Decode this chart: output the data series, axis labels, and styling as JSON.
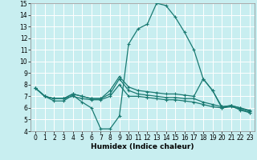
{
  "xlabel": "Humidex (Indice chaleur)",
  "bg_color": "#c8eef0",
  "grid_color": "#ffffff",
  "line_color": "#1a7a72",
  "xlim": [
    -0.5,
    23.5
  ],
  "ylim": [
    4,
    15
  ],
  "xticks": [
    0,
    1,
    2,
    3,
    4,
    5,
    6,
    7,
    8,
    9,
    10,
    11,
    12,
    13,
    14,
    15,
    16,
    17,
    18,
    19,
    20,
    21,
    22,
    23
  ],
  "yticks": [
    4,
    5,
    6,
    7,
    8,
    9,
    10,
    11,
    12,
    13,
    14,
    15
  ],
  "line1_x": [
    0,
    1,
    2,
    3,
    4,
    5,
    6,
    7,
    8,
    9,
    10,
    11,
    12,
    13,
    14,
    15,
    16,
    17,
    18,
    19,
    20,
    21,
    22,
    23
  ],
  "line1_y": [
    7.7,
    7.0,
    6.6,
    6.6,
    7.1,
    6.5,
    6.0,
    4.2,
    4.2,
    5.3,
    11.5,
    12.8,
    13.2,
    15.0,
    14.8,
    13.8,
    12.5,
    11.0,
    8.5,
    7.5,
    6.1,
    6.2,
    5.8,
    5.6
  ],
  "line2_x": [
    0,
    1,
    2,
    3,
    4,
    5,
    6,
    7,
    8,
    9,
    10,
    11,
    12,
    13,
    14,
    15,
    16,
    17,
    18,
    19,
    20,
    21,
    22,
    23
  ],
  "line2_y": [
    7.7,
    7.0,
    6.8,
    6.8,
    7.2,
    7.0,
    6.8,
    6.8,
    7.5,
    8.7,
    7.8,
    7.5,
    7.4,
    7.3,
    7.2,
    7.2,
    7.1,
    7.0,
    8.5,
    7.5,
    6.0,
    6.2,
    6.0,
    5.8
  ],
  "line3_x": [
    0,
    1,
    2,
    3,
    4,
    5,
    6,
    7,
    8,
    9,
    10,
    11,
    12,
    13,
    14,
    15,
    16,
    17,
    18,
    19,
    20,
    21,
    22,
    23
  ],
  "line3_y": [
    7.7,
    7.0,
    6.8,
    6.8,
    7.2,
    7.0,
    6.8,
    6.8,
    7.2,
    8.5,
    7.5,
    7.2,
    7.1,
    7.0,
    6.9,
    6.9,
    6.8,
    6.8,
    6.5,
    6.3,
    6.1,
    6.2,
    6.0,
    5.7
  ],
  "line4_x": [
    0,
    1,
    2,
    3,
    4,
    5,
    6,
    7,
    8,
    9,
    10,
    11,
    12,
    13,
    14,
    15,
    16,
    17,
    18,
    19,
    20,
    21,
    22,
    23
  ],
  "line4_y": [
    7.7,
    7.0,
    6.8,
    6.8,
    7.0,
    6.8,
    6.7,
    6.7,
    7.0,
    8.0,
    7.0,
    7.0,
    6.9,
    6.8,
    6.7,
    6.7,
    6.6,
    6.5,
    6.3,
    6.1,
    6.0,
    6.1,
    5.9,
    5.6
  ],
  "tick_fontsize": 5.5,
  "xlabel_fontsize": 6.5
}
